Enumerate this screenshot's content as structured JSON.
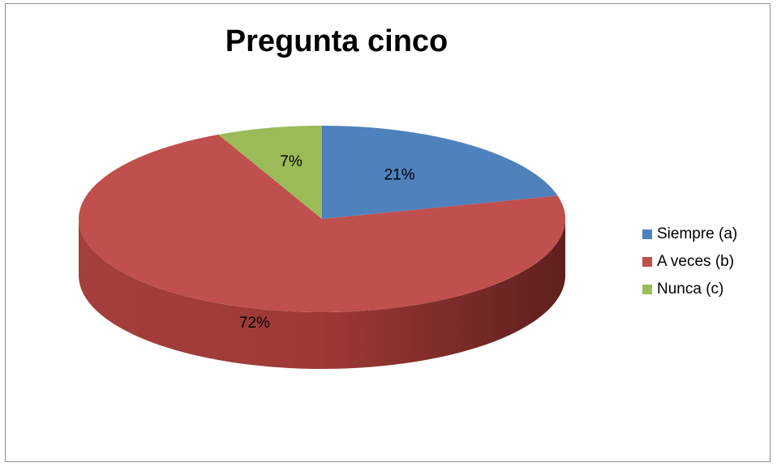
{
  "chart_data": {
    "type": "pie",
    "title": "Pregunta cinco",
    "style": "3d",
    "legend_position": "right",
    "slices": [
      {
        "label": "Siempre (a)",
        "value": 21,
        "display": "21%",
        "color": "#4f81bd"
      },
      {
        "label": "A veces (b)",
        "value": 72,
        "display": "72%",
        "color": "#c0504d"
      },
      {
        "label": "Nunca (c)",
        "value": 7,
        "display": "7%",
        "color": "#9bbb59"
      }
    ]
  }
}
